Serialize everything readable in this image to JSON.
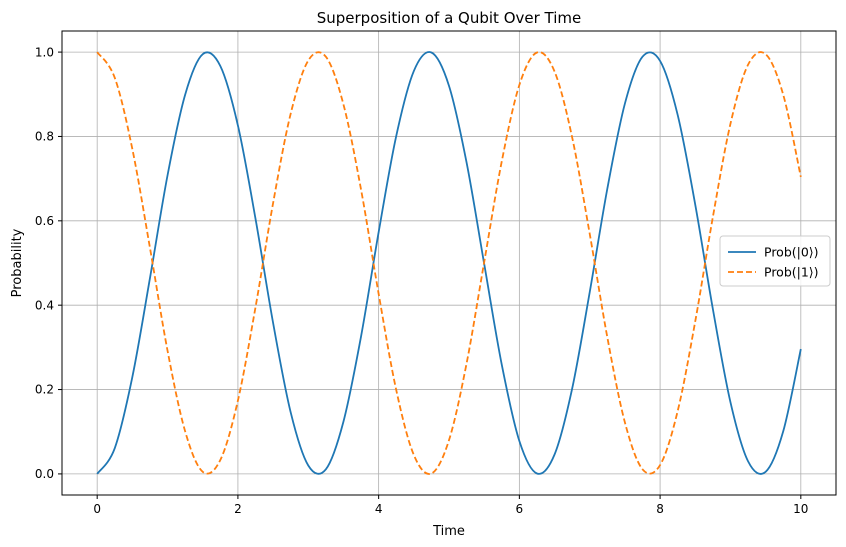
{
  "chart_data": {
    "type": "line",
    "title": "Superposition of a Qubit Over Time",
    "xlabel": "Time",
    "ylabel": "Probability",
    "xlim": [
      -0.5,
      10.5
    ],
    "ylim": [
      -0.05,
      1.05
    ],
    "x_ticks": [
      0,
      2,
      4,
      6,
      8,
      10
    ],
    "y_ticks": [
      0.0,
      0.2,
      0.4,
      0.6,
      0.8,
      1.0
    ],
    "x_tick_labels": [
      "0",
      "2",
      "4",
      "6",
      "8",
      "10"
    ],
    "y_tick_labels": [
      "0.0",
      "0.2",
      "0.4",
      "0.6",
      "0.8",
      "1.0"
    ],
    "grid": true,
    "legend_position": "center-right",
    "x": [
      0.0,
      0.25,
      0.5,
      0.75,
      1.0,
      1.25,
      1.5,
      1.75,
      2.0,
      2.25,
      2.5,
      2.75,
      3.0,
      3.25,
      3.5,
      3.75,
      4.0,
      4.25,
      4.5,
      4.75,
      5.0,
      5.25,
      5.5,
      5.75,
      6.0,
      6.25,
      6.5,
      6.75,
      7.0,
      7.25,
      7.5,
      7.75,
      8.0,
      8.25,
      8.5,
      8.75,
      9.0,
      9.25,
      9.5,
      9.75,
      10.0
    ],
    "series": [
      {
        "name": "Prob(|0⟩)",
        "color": "#1f77b4",
        "style": "solid",
        "values": [
          0.0,
          0.061,
          0.23,
          0.464,
          0.708,
          0.899,
          0.995,
          0.967,
          0.826,
          0.605,
          0.358,
          0.146,
          0.02,
          0.011,
          0.124,
          0.326,
          0.573,
          0.801,
          0.955,
          0.999,
          0.92,
          0.738,
          0.498,
          0.259,
          0.078,
          0.001,
          0.046,
          0.202,
          0.431,
          0.676,
          0.878,
          0.989,
          0.979,
          0.851,
          0.638,
          0.391,
          0.17,
          0.03,
          0.005,
          0.101,
          0.296
        ]
      },
      {
        "name": "Prob(|1⟩)",
        "color": "#ff7f0e",
        "style": "dashed",
        "values": [
          1.0,
          0.939,
          0.77,
          0.536,
          0.292,
          0.101,
          0.005,
          0.033,
          0.174,
          0.395,
          0.642,
          0.854,
          0.98,
          0.989,
          0.876,
          0.674,
          0.427,
          0.199,
          0.045,
          0.001,
          0.08,
          0.262,
          0.502,
          0.741,
          0.922,
          0.999,
          0.954,
          0.798,
          0.569,
          0.324,
          0.122,
          0.011,
          0.021,
          0.149,
          0.362,
          0.609,
          0.83,
          0.97,
          0.995,
          0.899,
          0.704
        ]
      }
    ]
  }
}
